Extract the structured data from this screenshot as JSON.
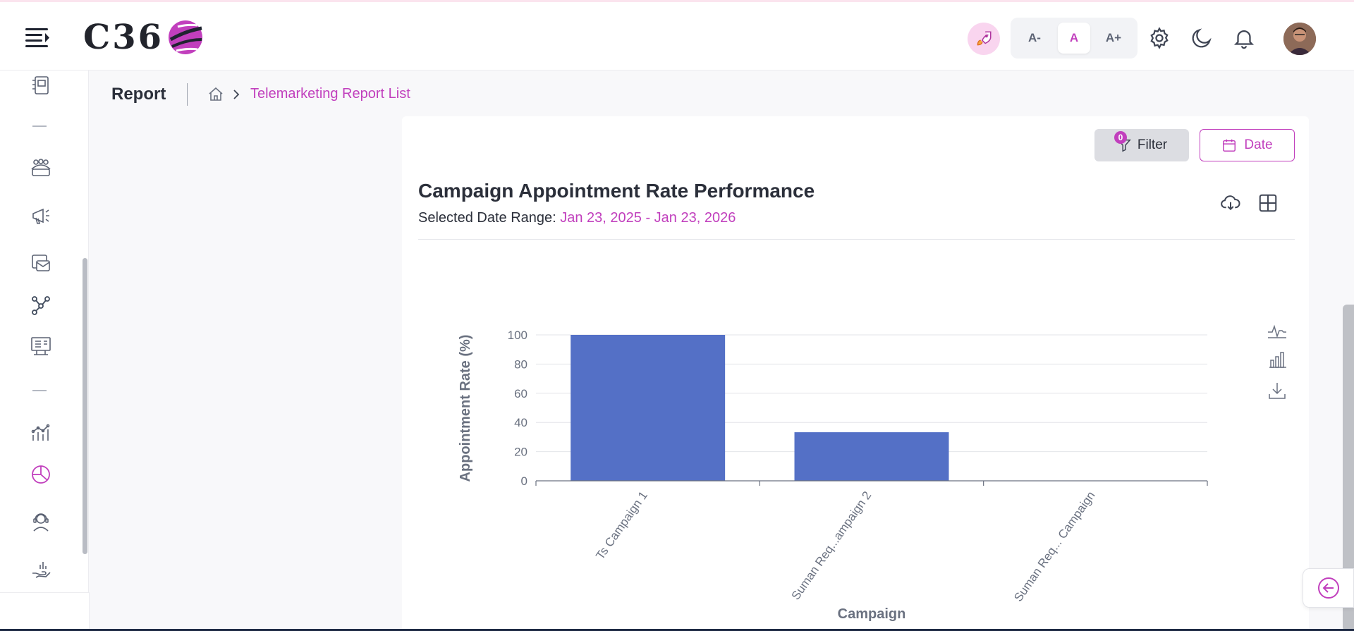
{
  "header": {
    "logo_text": "C36",
    "font_buttons": [
      {
        "label": "A-"
      },
      {
        "label": "A",
        "active": true
      },
      {
        "label": "A+"
      }
    ],
    "icons": [
      "hamburger-icon",
      "rocket-icon",
      "gear-icon",
      "moon-icon",
      "bell-icon"
    ]
  },
  "sidebar": {
    "icons": [
      "dialer-icon",
      "team-icon",
      "megaphone-icon",
      "mail-icon",
      "workflow-icon",
      "training-icon",
      "analytics-icon",
      "report-pie-icon",
      "agent-headset-icon",
      "hand-chart-icon"
    ],
    "active": "report-pie-icon"
  },
  "page": {
    "title": "Report",
    "breadcrumb_current": "Telemarketing Report List"
  },
  "card": {
    "filter_label": "Filter",
    "filter_count": "0",
    "date_label": "Date",
    "chart_title": "Campaign Appointment Rate Performance",
    "date_range_label": "Selected Date Range: ",
    "date_range_value": "Jan 23, 2025 - Jan 23, 2026"
  },
  "colors": {
    "accent": "#c13fbd",
    "bar": "#5470c6"
  },
  "chart_data": {
    "type": "bar",
    "title": "",
    "categories": [
      "Ts Campaign 1",
      "Suman Req...ampaign 2",
      "Suman Req... Campaign"
    ],
    "values": [
      100,
      33.3,
      0
    ],
    "xlabel": "Campaign",
    "ylabel": "Appointment Rate (%)",
    "ylim": [
      0,
      100
    ],
    "yticks": [
      "0",
      "20",
      "40",
      "60",
      "80",
      "100"
    ],
    "grid": true
  }
}
